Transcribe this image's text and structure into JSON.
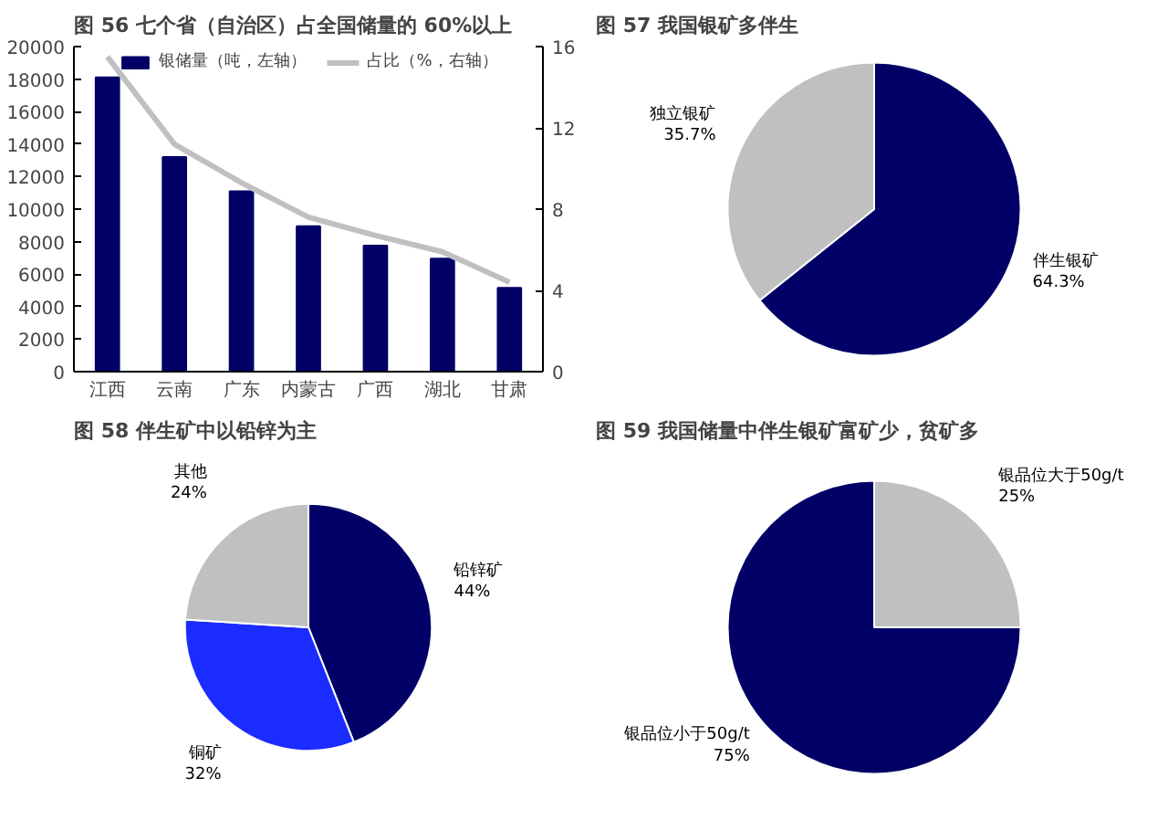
{
  "chart_data": [
    {
      "type": "bar",
      "title": "图 56 七个省（自治区）占全国储量的 60%以上",
      "categories": [
        "江西",
        "云南",
        "广东",
        "内蒙古",
        "广西",
        "湖北",
        "甘肃"
      ],
      "ylim": [
        0,
        20000
      ],
      "yticks": [
        0,
        2000,
        4000,
        6000,
        8000,
        10000,
        12000,
        14000,
        16000,
        18000,
        20000
      ],
      "y2lim": [
        0,
        16
      ],
      "y2ticks": [
        0,
        4,
        8,
        12,
        16
      ],
      "grid": false,
      "legend": "top",
      "series": [
        {
          "name": "银储量（吨，左轴）",
          "type": "bar",
          "color": "#000066",
          "values": [
            18100,
            13200,
            11100,
            8950,
            7750,
            6950,
            5150
          ]
        },
        {
          "name": "占比（%，右轴）",
          "type": "line",
          "axis": "y2",
          "color": "#c0c0c0",
          "values": [
            15.5,
            11.2,
            9.3,
            7.6,
            6.7,
            5.9,
            4.4
          ]
        }
      ]
    },
    {
      "type": "pie",
      "title": "图 57 我国银矿多伴生",
      "categories": [
        "伴生银矿",
        "独立银矿"
      ],
      "values": [
        64.3,
        35.7
      ],
      "colors": [
        "#000066",
        "#c0c0c0"
      ],
      "value_labels": [
        "64.3%",
        "35.7%"
      ]
    },
    {
      "type": "pie",
      "title": "图 58 伴生矿中以铅锌为主",
      "categories": [
        "铅锌矿",
        "铜矿",
        "其他"
      ],
      "values": [
        44,
        32,
        24
      ],
      "colors": [
        "#000066",
        "#1a2cff",
        "#c0c0c0"
      ],
      "value_labels": [
        "44%",
        "32%",
        "24%"
      ]
    },
    {
      "type": "pie",
      "title": "图 59 我国储量中伴生银矿富矿少，贫矿多",
      "categories": [
        "银品位大于50g/t",
        "银品位小于50g/t"
      ],
      "values": [
        25,
        75
      ],
      "colors": [
        "#c0c0c0",
        "#000066"
      ],
      "value_labels": [
        "25%",
        "75%"
      ]
    }
  ]
}
